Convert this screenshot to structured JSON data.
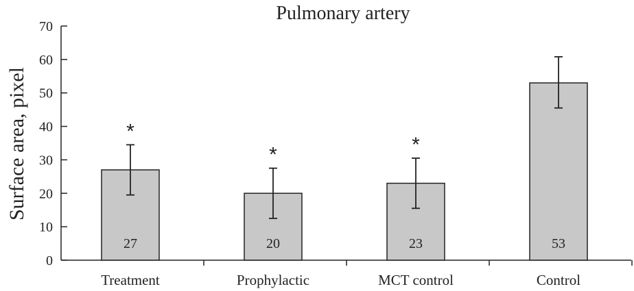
{
  "chart_data": {
    "type": "bar",
    "title": "Pulmonary artery",
    "xlabel": "",
    "ylabel": "Surface area, pixel",
    "ylim": [
      0,
      70
    ],
    "yticks": [
      0,
      10,
      20,
      30,
      40,
      50,
      60,
      70
    ],
    "categories": [
      "Treatment",
      "Prophylactic",
      "MCT control",
      "Control"
    ],
    "values": [
      27,
      20,
      23,
      53
    ],
    "value_labels": [
      "27",
      "20",
      "23",
      "53"
    ],
    "error_low": [
      19.5,
      12.5,
      15.5,
      45.5
    ],
    "error_high": [
      34.5,
      27.5,
      30.5,
      60.8
    ],
    "significance": [
      "*",
      "*",
      "*",
      ""
    ],
    "bar_color": "#c8c8c8",
    "grid": false,
    "legend": "none"
  }
}
